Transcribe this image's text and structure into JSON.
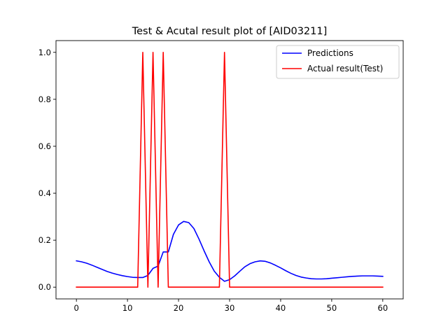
{
  "chart_data": {
    "type": "line",
    "title": "Test & Acutal result plot of [AID03211]",
    "xlabel": "",
    "ylabel": "",
    "xlim": [
      -4,
      64
    ],
    "ylim": [
      -0.05,
      1.05
    ],
    "xticks": [
      0,
      10,
      20,
      30,
      40,
      50,
      60
    ],
    "yticks": [
      0.0,
      0.2,
      0.4,
      0.6,
      0.8,
      1.0
    ],
    "xtick_labels": [
      "0",
      "10",
      "20",
      "30",
      "40",
      "50",
      "60"
    ],
    "ytick_labels": [
      "0.0",
      "0.2",
      "0.4",
      "0.6",
      "0.8",
      "1.0"
    ],
    "grid": false,
    "legend_position": "top-right",
    "series": [
      {
        "name": "Predictions",
        "color": "#0000ff",
        "x": [
          0,
          1,
          2,
          3,
          4,
          5,
          6,
          7,
          8,
          9,
          10,
          11,
          12,
          13,
          14,
          15,
          16,
          17,
          18,
          19,
          20,
          21,
          22,
          23,
          24,
          25,
          26,
          27,
          28,
          29,
          30,
          31,
          32,
          33,
          34,
          35,
          36,
          37,
          38,
          39,
          40,
          41,
          42,
          43,
          44,
          45,
          46,
          47,
          48,
          49,
          50,
          51,
          52,
          53,
          54,
          55,
          56,
          57,
          58,
          59,
          60
        ],
        "y": [
          0.112,
          0.108,
          0.102,
          0.094,
          0.085,
          0.076,
          0.067,
          0.06,
          0.054,
          0.049,
          0.045,
          0.042,
          0.041,
          0.041,
          0.05,
          0.08,
          0.09,
          0.15,
          0.15,
          0.225,
          0.265,
          0.28,
          0.275,
          0.25,
          0.205,
          0.155,
          0.108,
          0.068,
          0.042,
          0.025,
          0.032,
          0.048,
          0.068,
          0.087,
          0.1,
          0.108,
          0.112,
          0.11,
          0.103,
          0.093,
          0.082,
          0.07,
          0.059,
          0.05,
          0.043,
          0.039,
          0.036,
          0.035,
          0.035,
          0.036,
          0.038,
          0.04,
          0.042,
          0.044,
          0.046,
          0.047,
          0.048,
          0.048,
          0.048,
          0.047,
          0.046
        ]
      },
      {
        "name": "Actual result(Test)",
        "color": "#ff0000",
        "x": [
          0,
          1,
          2,
          3,
          4,
          5,
          6,
          7,
          8,
          9,
          10,
          11,
          12,
          13,
          14,
          15,
          16,
          17,
          18,
          19,
          20,
          21,
          22,
          23,
          24,
          25,
          26,
          27,
          28,
          29,
          30,
          31,
          32,
          33,
          34,
          35,
          36,
          37,
          38,
          39,
          40,
          41,
          42,
          43,
          44,
          45,
          46,
          47,
          48,
          49,
          50,
          51,
          52,
          53,
          54,
          55,
          56,
          57,
          58,
          59,
          60
        ],
        "y": [
          0,
          0,
          0,
          0,
          0,
          0,
          0,
          0,
          0,
          0,
          0,
          0,
          0,
          1,
          0,
          1,
          0,
          1,
          0,
          0,
          0,
          0,
          0,
          0,
          0,
          0,
          0,
          0,
          0,
          1,
          0,
          0,
          0,
          0,
          0,
          0,
          0,
          0,
          0,
          0,
          0,
          0,
          0,
          0,
          0,
          0,
          0,
          0,
          0,
          0,
          0,
          0,
          0,
          0,
          0,
          0,
          0,
          0,
          0,
          0,
          0
        ]
      }
    ]
  }
}
